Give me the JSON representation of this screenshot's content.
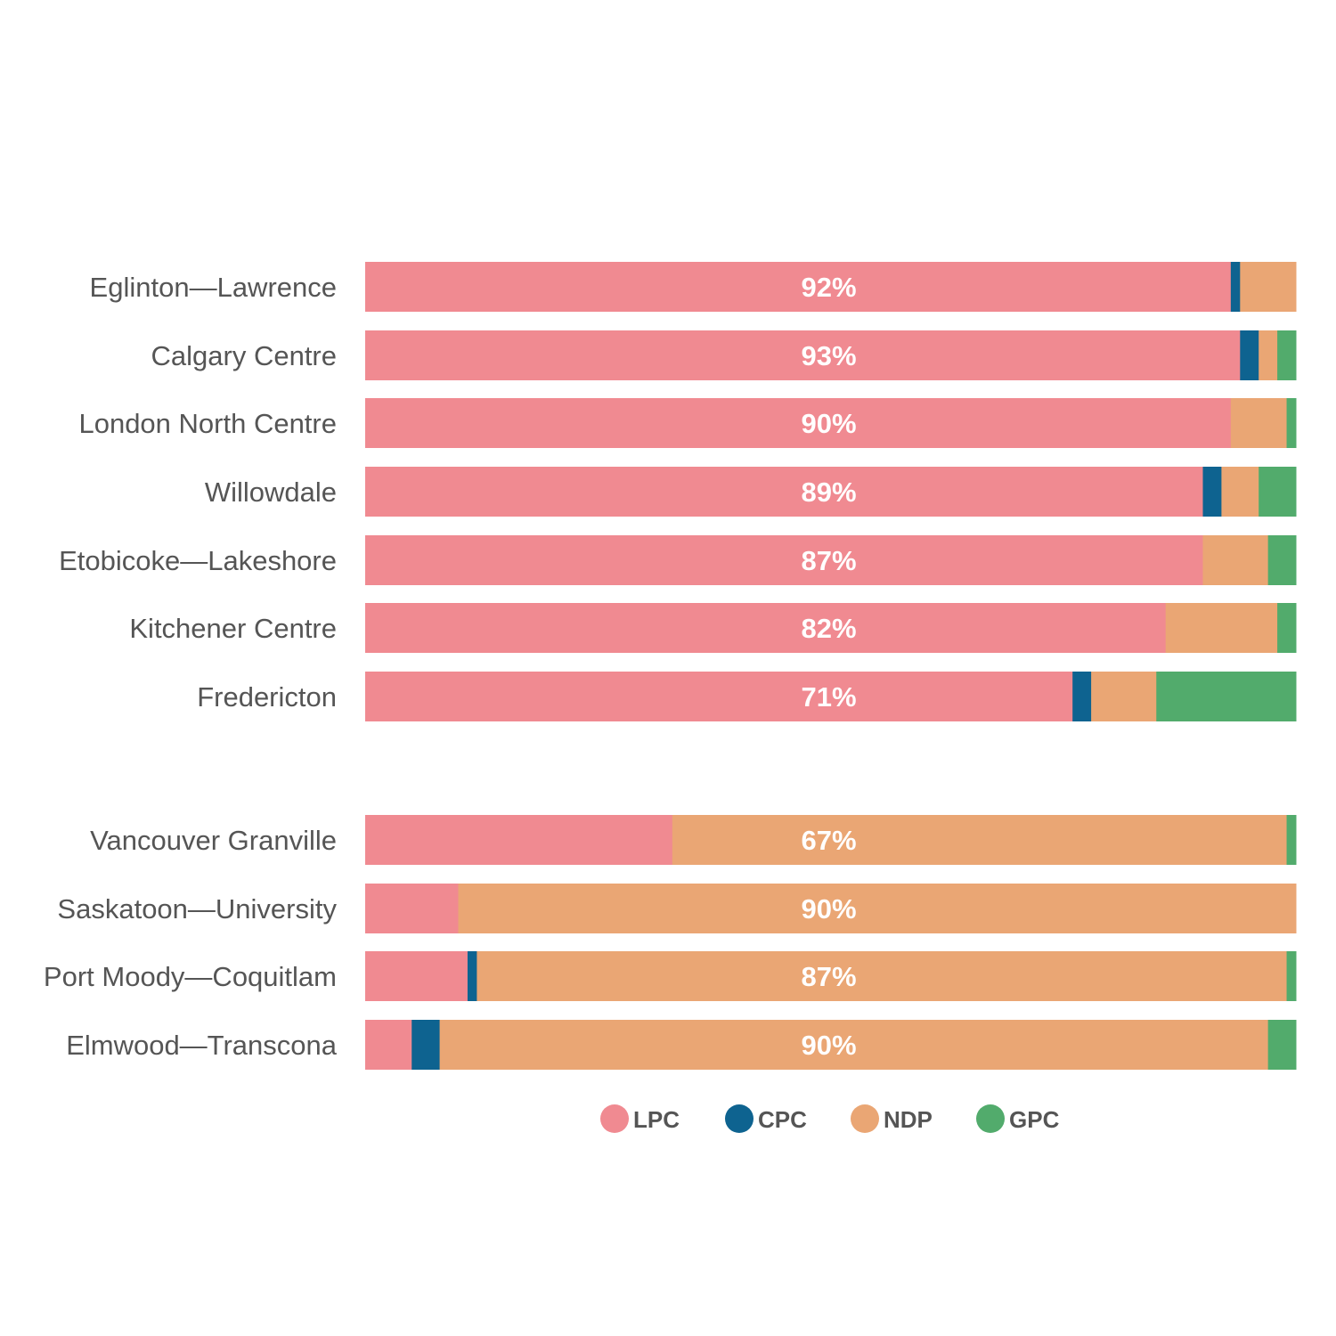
{
  "chart_data": {
    "type": "bar",
    "orientation": "horizontal",
    "stacked": true,
    "normalized_to_percent": true,
    "legend_position": "bottom",
    "grid": false,
    "title": "",
    "xlabel": "",
    "ylabel": "",
    "series_colors": {
      "LPC": "#f08a91",
      "CPC": "#0e6390",
      "NDP": "#eaa674",
      "GPC": "#52ab6c"
    },
    "legend": [
      "LPC",
      "CPC",
      "NDP",
      "GPC"
    ],
    "rows": [
      {
        "name": "Eglinton—Lawrence",
        "label": "92%",
        "values": {
          "LPC": 93,
          "CPC": 1,
          "NDP": 6,
          "GPC": 0
        }
      },
      {
        "name": "Calgary Centre",
        "label": "93%",
        "values": {
          "LPC": 94,
          "CPC": 2,
          "NDP": 2,
          "GPC": 2
        }
      },
      {
        "name": "London North Centre",
        "label": "90%",
        "values": {
          "LPC": 93,
          "CPC": 0,
          "NDP": 6,
          "GPC": 1
        }
      },
      {
        "name": "Willowdale",
        "label": "89%",
        "values": {
          "LPC": 90,
          "CPC": 2,
          "NDP": 4,
          "GPC": 4
        }
      },
      {
        "name": "Etobicoke—Lakeshore",
        "label": "87%",
        "values": {
          "LPC": 90,
          "CPC": 0,
          "NDP": 7,
          "GPC": 3
        }
      },
      {
        "name": "Kitchener Centre",
        "label": "82%",
        "values": {
          "LPC": 86,
          "CPC": 0,
          "NDP": 12,
          "GPC": 2
        }
      },
      {
        "name": "Fredericton",
        "label": "71%",
        "values": {
          "LPC": 76,
          "CPC": 2,
          "NDP": 7,
          "GPC": 15
        }
      },
      {
        "name": "Vancouver Granville",
        "label": "67%",
        "values": {
          "LPC": 33,
          "CPC": 0,
          "NDP": 66,
          "GPC": 1
        }
      },
      {
        "name": "Saskatoon—University",
        "label": "90%",
        "values": {
          "LPC": 10,
          "CPC": 0,
          "NDP": 90,
          "GPC": 0
        }
      },
      {
        "name": "Port Moody—Coquitlam",
        "label": "87%",
        "values": {
          "LPC": 11,
          "CPC": 1,
          "NDP": 87,
          "GPC": 1
        }
      },
      {
        "name": "Elmwood—Transcona",
        "label": "90%",
        "values": {
          "LPC": 5,
          "CPC": 3,
          "NDP": 89,
          "GPC": 3
        }
      }
    ]
  }
}
